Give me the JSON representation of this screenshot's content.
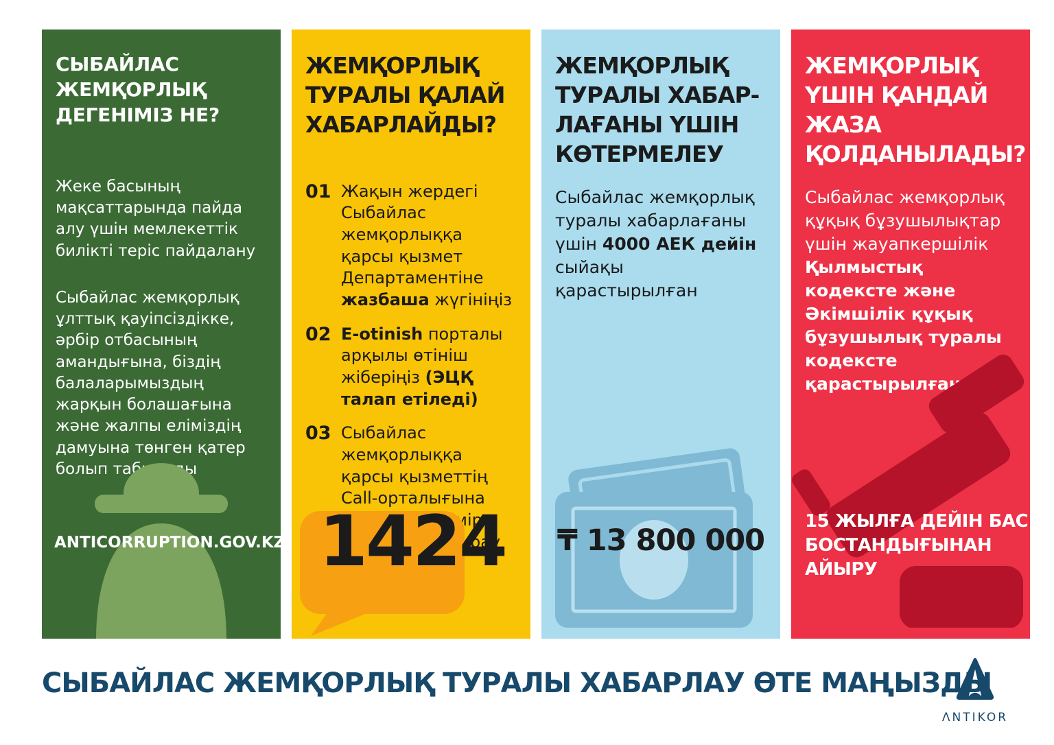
{
  "poster": {
    "columns": {
      "definition": {
        "bg_color": "#3B6A35",
        "icon": "spy-icon",
        "icon_color": "#7CA45E",
        "title": "СЫБАЙЛАС\nЖЕМҚОРЛЫҚ\nДЕГЕНІМІЗ НЕ?",
        "para1": "Жеке басының мақсаттарында пайда алу үшін мемлекеттік билікті теріс пайдалану",
        "para2": "Сыбайлас жемқорлық ұлттық қауіпсіздікке, әрбір отбасының амандығына, біздің балаларымыздың жарқын болашағына және жалпы еліміздің дамуына төнген қатер болып табылады",
        "website": "ANTICORRUPTION.GOV.KZ"
      },
      "reporting": {
        "bg_color": "#F9C306",
        "bubble_color": "#F7A011",
        "bubble_icon": "speech-bubble-icon",
        "title": "ЖЕМҚОРЛЫҚ\nТУРАЛЫ ҚАЛАЙ\nХАБАРЛАЙДЫ?",
        "items": [
          {
            "num": "01",
            "segments": [
              {
                "t": "Жақын жердегі Сыбайлас жемқорлыққа қарсы қызмет Департаментіне "
              },
              {
                "t": "жазбаша",
                "b": true
              },
              {
                "t": " жүгініңіз"
              }
            ]
          },
          {
            "num": "02",
            "segments": [
              {
                "t": "E-otinish",
                "b": true
              },
              {
                "t": " порталы арқылы өтініш жіберіңіз "
              },
              {
                "t": "(ЭЦҚ талап етіледі)",
                "b": true
              }
            ]
          },
          {
            "num": "03",
            "segments": [
              {
                "t": "Сыбайлас жемқорлыққа қарсы қызметтің Call-орталығына төмендегі нөмір бойынша қоңырау шалыңыз"
              }
            ]
          }
        ],
        "phone": "1424"
      },
      "reward": {
        "bg_color": "#AADCEE",
        "icon": "banknote-icon",
        "icon_color": "#7FB9D4",
        "title": "ЖЕМҚОРЛЫҚ\nТУРАЛЫ ХАБАР-\nЛАҒАНЫ ҮШІН\nКӨТЕРМЕЛЕУ",
        "body_segments": [
          {
            "t": "Сыбайлас жемқорлық туралы хабарлағаны үшін "
          },
          {
            "t": "4000 АЕК дейін",
            "b": true
          },
          {
            "t": " сыйақы қарастырылған"
          }
        ],
        "amount": "₸ 13 800 000"
      },
      "punishment": {
        "bg_color": "#ED3146",
        "icon": "gavel-icon",
        "icon_color": "#B5132A",
        "title": "ЖЕМҚОРЛЫҚ\nҮШІН ҚАНДАЙ\nЖАЗА\nҚОЛДАНЫЛАДЫ?",
        "body_segments": [
          {
            "t": "Сыбайлас жемқорлық құқық бұзушылықтар үшін жауапкершілік "
          },
          {
            "t": "Қылмыстық кодексте және Әкімшілік құқық бұзушылық туралы кодексте қарастырылған",
            "b": true
          }
        ],
        "sentence": "15 ЖЫЛҒА ДЕЙІН БАС\nБОСТАНДЫҒЫНАН\nАЙЫРУ"
      }
    },
    "footer": {
      "slogan": "СЫБАЙЛАС ЖЕМҚОРЛЫҚ ТУРАЛЫ ХАБАРЛАУ ӨТЕ МАҢЫЗДЫ",
      "logo_text": "ΛNTIKOR",
      "text_color": "#17496B"
    }
  }
}
